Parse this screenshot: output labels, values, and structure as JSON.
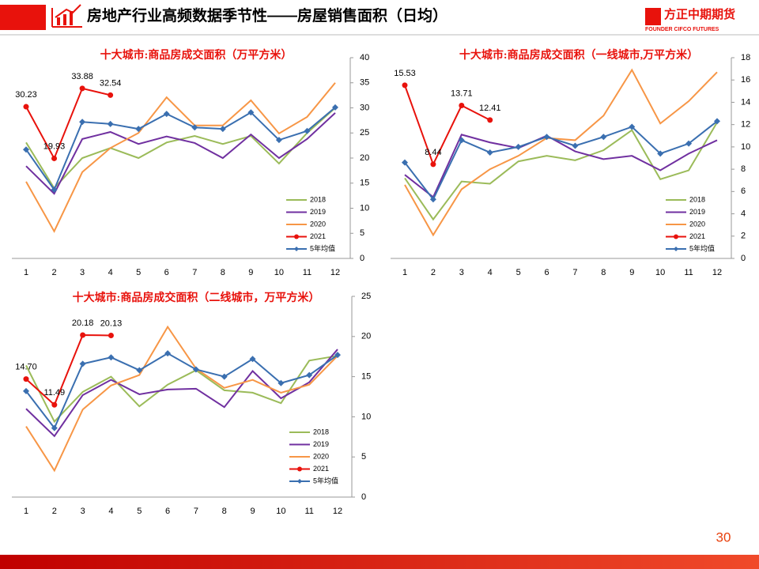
{
  "header": {
    "title": "房地产行业高频数据季节性——房屋销售面积（日均）",
    "logo": "方正中期期货",
    "logo_en": "FOUNDER CIFCO FUTURES"
  },
  "page_number": "30",
  "chart_data": [
    {
      "type": "line",
      "title": "十大城市:商品房成交面积（万平方米）",
      "categories": [
        "1",
        "2",
        "3",
        "4",
        "5",
        "6",
        "7",
        "8",
        "9",
        "10",
        "11",
        "12"
      ],
      "ylim": [
        0,
        40
      ],
      "yticks": [
        0,
        5,
        10,
        15,
        20,
        25,
        30,
        35,
        40
      ],
      "legend": "lower right",
      "series": [
        {
          "name": "2018",
          "color": "#9bbb59",
          "values": [
            23.1,
            14,
            20,
            22,
            20,
            23.1,
            24.4,
            22.8,
            24.4,
            18.9,
            25,
            30
          ]
        },
        {
          "name": "2019",
          "color": "#7030a0",
          "values": [
            18.4,
            12.9,
            23.8,
            25.2,
            22.8,
            24.3,
            23,
            20,
            24.7,
            20,
            23.8,
            29
          ]
        },
        {
          "name": "2020",
          "color": "#f79646",
          "values": [
            15.3,
            5.4,
            17.2,
            22,
            25,
            32.1,
            26.5,
            26.5,
            31.5,
            24.9,
            28.2,
            35
          ]
        },
        {
          "name": "2021",
          "color": "#e8120c",
          "marker": "circle",
          "values": [
            30.23,
            19.93,
            33.88,
            32.54,
            null,
            null,
            null,
            null,
            null,
            null,
            null,
            null
          ],
          "value_labels": [
            "30.23",
            "19.93",
            "33.88",
            "32.54",
            null,
            null,
            null,
            null,
            null,
            null,
            null,
            null
          ]
        },
        {
          "name": "5年均值",
          "color": "#3a6fb0",
          "marker": "diamond",
          "values": [
            21.7,
            13.7,
            27.2,
            26.8,
            25.8,
            28.8,
            26.1,
            25.8,
            29.1,
            23.6,
            25.4,
            30.1
          ]
        }
      ]
    },
    {
      "type": "line",
      "title": "十大城市:商品房成交面积（一线城市,万平方米）",
      "categories": [
        "1",
        "2",
        "3",
        "4",
        "5",
        "6",
        "7",
        "8",
        "9",
        "10",
        "11",
        "12"
      ],
      "ylim": [
        0,
        18
      ],
      "yticks": [
        0,
        2,
        4,
        6,
        8,
        10,
        12,
        14,
        16,
        18
      ],
      "legend": "lower right",
      "series": [
        {
          "name": "2018",
          "color": "#9bbb59",
          "values": [
            7.2,
            3.5,
            6.9,
            6.7,
            8.7,
            9.2,
            8.8,
            9.7,
            11.5,
            7.1,
            7.9,
            12.2
          ]
        },
        {
          "name": "2019",
          "color": "#7030a0",
          "values": [
            7.5,
            5.5,
            11.1,
            10.4,
            9.9,
            11,
            9.6,
            8.9,
            9.2,
            7.9,
            9.4,
            10.6
          ]
        },
        {
          "name": "2020",
          "color": "#f79646",
          "values": [
            6.6,
            2.1,
            6.2,
            8,
            9.2,
            10.8,
            10.6,
            12.8,
            16.9,
            12.1,
            14.1,
            16.7
          ]
        },
        {
          "name": "2021",
          "color": "#e8120c",
          "marker": "circle",
          "values": [
            15.53,
            8.44,
            13.71,
            12.41,
            null,
            null,
            null,
            null,
            null,
            null,
            null,
            null
          ],
          "value_labels": [
            "15.53",
            "8.44",
            "13.71",
            "12.41",
            null,
            null,
            null,
            null,
            null,
            null,
            null,
            null
          ]
        },
        {
          "name": "5年均值",
          "color": "#3a6fb0",
          "marker": "diamond",
          "values": [
            8.6,
            5.3,
            10.6,
            9.5,
            10,
            10.9,
            10.1,
            10.9,
            11.8,
            9.4,
            10.3,
            12.3
          ]
        }
      ]
    },
    {
      "type": "line",
      "title": "十大城市:商品房成交面积（二线城市，万平方米）",
      "categories": [
        "1",
        "2",
        "3",
        "4",
        "5",
        "6",
        "7",
        "8",
        "9",
        "10",
        "11",
        "12"
      ],
      "ylim": [
        0,
        25
      ],
      "yticks": [
        0,
        5,
        10,
        15,
        20,
        25
      ],
      "legend": "lower right",
      "series": [
        {
          "name": "2018",
          "color": "#9bbb59",
          "values": [
            16.4,
            9.4,
            13.1,
            15,
            11.3,
            14,
            15.8,
            13.3,
            13,
            11.7,
            17,
            17.6
          ]
        },
        {
          "name": "2019",
          "color": "#7030a0",
          "values": [
            11,
            7.6,
            12.7,
            14.6,
            12.8,
            13.4,
            13.5,
            11.2,
            15.7,
            12.3,
            14.3,
            18.4
          ]
        },
        {
          "name": "2020",
          "color": "#f79646",
          "values": [
            8.8,
            3.3,
            10.9,
            13.9,
            15.2,
            21.2,
            16,
            13.6,
            14.6,
            13,
            14,
            17.6
          ]
        },
        {
          "name": "2021",
          "color": "#e8120c",
          "marker": "circle",
          "values": [
            14.7,
            11.49,
            20.18,
            20.13,
            null,
            null,
            null,
            null,
            null,
            null,
            null,
            null
          ],
          "value_labels": [
            "14.70",
            "11.49",
            "20.18",
            "20.13",
            null,
            null,
            null,
            null,
            null,
            null,
            null,
            null
          ]
        },
        {
          "name": "5年均值",
          "color": "#3a6fb0",
          "marker": "diamond",
          "values": [
            13.2,
            8.6,
            16.6,
            17.4,
            15.8,
            17.9,
            15.9,
            15,
            17.2,
            14.2,
            15.2,
            17.7
          ]
        }
      ]
    }
  ]
}
